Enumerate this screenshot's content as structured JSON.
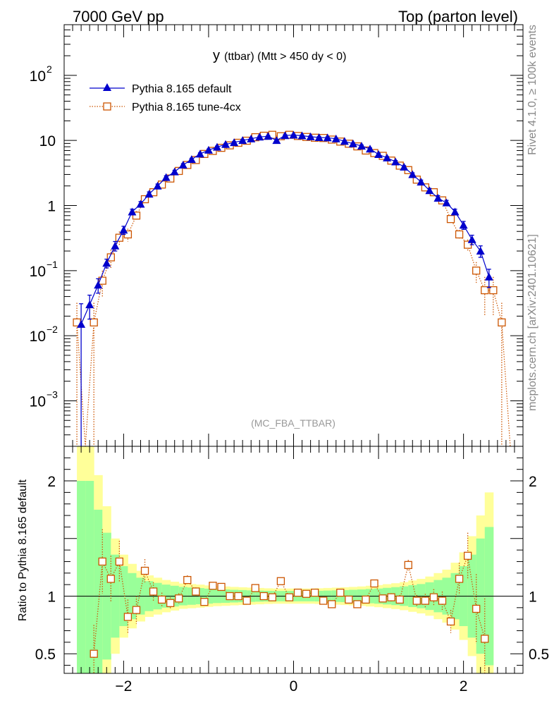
{
  "header": {
    "left": "7000 GeV pp",
    "right": "Top (parton level)"
  },
  "side_labels": {
    "rivet": "Rivet 4.1.0, ≥ 100k events",
    "mcplots": "mcplots.cern.ch [arXiv:2401.10621]"
  },
  "chart_data": [
    {
      "type": "scatter",
      "role": "main",
      "title_main": "y",
      "title_rest": "(ttbar) (Mtt > 450 dy < 0)",
      "watermark": "(MC_FBA_TTBAR)",
      "yscale": "log",
      "ylim": [
        0.0002,
        600
      ],
      "xlim": [
        -2.7,
        2.7
      ],
      "xlabel": "",
      "ylabel": "",
      "y_ticks": [
        {
          "value": 0.001,
          "base": "10",
          "exp": "−3"
        },
        {
          "value": 0.01,
          "base": "10",
          "exp": "−2"
        },
        {
          "value": 0.1,
          "base": "10",
          "exp": "−1"
        },
        {
          "value": 1,
          "base": "1",
          "exp": ""
        },
        {
          "value": 10,
          "base": "10",
          "exp": ""
        },
        {
          "value": 100,
          "base": "10",
          "exp": "2"
        }
      ],
      "legend": [
        "Pythia 8.165 default",
        "Pythia 8.165 tune-4cx"
      ],
      "legend_position": "top-left",
      "series": [
        {
          "name": "Pythia 8.165 default",
          "color": "#0000cc",
          "marker": "triangle",
          "x": [
            -2.5,
            -2.4,
            -2.3,
            -2.2,
            -2.1,
            -2.0,
            -1.9,
            -1.8,
            -1.7,
            -1.6,
            -1.5,
            -1.4,
            -1.3,
            -1.2,
            -1.1,
            -1.0,
            -0.9,
            -0.8,
            -0.7,
            -0.6,
            -0.5,
            -0.4,
            -0.3,
            -0.2,
            -0.1,
            0.0,
            0.1,
            0.2,
            0.3,
            0.4,
            0.5,
            0.6,
            0.7,
            0.8,
            0.9,
            1.0,
            1.1,
            1.2,
            1.3,
            1.4,
            1.5,
            1.6,
            1.7,
            1.8,
            1.9,
            2.0,
            2.1,
            2.2,
            2.3
          ],
          "y": [
            0.015,
            0.03,
            0.06,
            0.13,
            0.24,
            0.42,
            0.8,
            1.05,
            1.5,
            2.0,
            2.7,
            3.3,
            4.2,
            5.1,
            6.2,
            7.1,
            7.9,
            8.7,
            9.3,
            10.0,
            10.6,
            11.3,
            11.6,
            10.0,
            11.9,
            12.1,
            11.8,
            11.4,
            11.1,
            11.0,
            10.6,
            9.7,
            8.9,
            8.2,
            7.4,
            6.1,
            5.4,
            4.7,
            3.9,
            3.0,
            2.3,
            1.7,
            1.3,
            1.1,
            0.8,
            0.5,
            0.3,
            0.2,
            0.08
          ],
          "yerr": [
            0.016,
            0.012,
            0.015,
            0.02,
            0.04,
            0.06,
            0.08,
            0.1,
            0.12,
            0.14,
            0.16,
            0.18,
            0.2,
            0.22,
            0.24,
            0.26,
            0.28,
            0.3,
            0.3,
            0.32,
            0.32,
            0.34,
            0.34,
            0.32,
            0.35,
            0.35,
            0.35,
            0.34,
            0.34,
            0.33,
            0.33,
            0.32,
            0.3,
            0.3,
            0.28,
            0.26,
            0.24,
            0.22,
            0.2,
            0.18,
            0.16,
            0.13,
            0.12,
            0.1,
            0.08,
            0.07,
            0.05,
            0.04,
            0.025
          ]
        },
        {
          "name": "Pythia 8.165 tune-4cx",
          "color": "#cc5500",
          "marker": "open-square",
          "x": [
            -2.55,
            -2.45,
            -2.35,
            -2.25,
            -2.15,
            -2.05,
            -1.95,
            -1.85,
            -1.75,
            -1.65,
            -1.55,
            -1.45,
            -1.35,
            -1.25,
            -1.15,
            -1.05,
            -0.95,
            -0.85,
            -0.75,
            -0.65,
            -0.55,
            -0.45,
            -0.35,
            -0.25,
            -0.15,
            -0.05,
            0.05,
            0.15,
            0.25,
            0.35,
            0.45,
            0.55,
            0.65,
            0.75,
            0.85,
            0.95,
            1.05,
            1.15,
            1.25,
            1.35,
            1.45,
            1.55,
            1.65,
            1.75,
            1.85,
            1.95,
            2.05,
            2.15,
            2.25,
            2.35,
            2.45,
            2.55
          ],
          "y": [
            0.016,
            0,
            0.016,
            0.07,
            0.16,
            0.32,
            0.36,
            0.7,
            1.25,
            1.6,
            2.1,
            2.6,
            3.4,
            4.2,
            5.0,
            6.2,
            6.9,
            7.7,
            8.4,
            9.2,
            9.9,
            11.2,
            11.8,
            12.2,
            11.6,
            12.2,
            11.7,
            11.3,
            11.0,
            10.9,
            10.3,
            9.6,
            8.9,
            8.1,
            7.0,
            6.4,
            5.8,
            4.9,
            4.1,
            3.5,
            2.5,
            1.9,
            1.6,
            1.2,
            0.62,
            0.36,
            0.25,
            0.1,
            0.05,
            0.05,
            0.016,
            0
          ],
          "yerr": [
            0.016,
            0,
            0.016,
            0.03,
            0.05,
            0.08,
            0.08,
            0.12,
            0.14,
            0.16,
            0.18,
            0.2,
            0.22,
            0.24,
            0.26,
            0.28,
            0.3,
            0.3,
            0.32,
            0.33,
            0.34,
            0.35,
            0.36,
            0.36,
            0.36,
            0.36,
            0.36,
            0.35,
            0.35,
            0.35,
            0.34,
            0.33,
            0.32,
            0.3,
            0.28,
            0.27,
            0.25,
            0.24,
            0.22,
            0.2,
            0.17,
            0.15,
            0.13,
            0.11,
            0.08,
            0.06,
            0.05,
            0.035,
            0.03,
            0.03,
            0.016,
            0
          ]
        }
      ]
    },
    {
      "type": "scatter",
      "role": "ratio",
      "ylabel": "Ratio to Pythia 8.165 default",
      "xlabel": "",
      "yscale": "linear",
      "ylim": [
        0.33,
        2.3
      ],
      "xlim": [
        -2.7,
        2.7
      ],
      "x_ticks": [
        {
          "value": -2,
          "label": "−2"
        },
        {
          "value": 0,
          "label": "0"
        },
        {
          "value": 2,
          "label": "2"
        }
      ],
      "y_ticks": [
        {
          "value": 0.5,
          "label": "0.5"
        },
        {
          "value": 1,
          "label": "1"
        },
        {
          "value": 2,
          "label": "2"
        }
      ],
      "reference_line": 1,
      "band_edges": [
        -2.55,
        -2.45,
        -2.35,
        -2.25,
        -2.15,
        -2.05,
        -1.95,
        -1.85,
        -1.75,
        -1.65,
        -1.55,
        -1.45,
        -1.35,
        -1.25,
        -1.15,
        -1.05,
        -0.95,
        -0.85,
        -0.75,
        -0.65,
        -0.55,
        -0.45,
        -0.35,
        -0.25,
        -0.15,
        -0.05,
        0.05,
        0.15,
        0.25,
        0.35,
        0.45,
        0.55,
        0.65,
        0.75,
        0.85,
        0.95,
        1.05,
        1.15,
        1.25,
        1.35,
        1.45,
        1.55,
        1.65,
        1.75,
        1.85,
        1.95,
        2.05,
        2.15,
        2.25,
        2.35
      ],
      "band_inner": [
        1.0,
        1.0,
        0.75,
        0.55,
        0.36,
        0.26,
        0.2,
        0.16,
        0.13,
        0.115,
        0.1,
        0.09,
        0.08,
        0.075,
        0.07,
        0.065,
        0.06,
        0.058,
        0.055,
        0.053,
        0.05,
        0.048,
        0.046,
        0.045,
        0.045,
        0.045,
        0.045,
        0.045,
        0.046,
        0.048,
        0.05,
        0.052,
        0.055,
        0.058,
        0.062,
        0.066,
        0.072,
        0.078,
        0.085,
        0.095,
        0.105,
        0.12,
        0.14,
        0.16,
        0.2,
        0.26,
        0.36,
        0.5,
        0.6
      ],
      "band_outer": [
        1.4,
        1.4,
        1.05,
        0.78,
        0.5,
        0.36,
        0.28,
        0.22,
        0.18,
        0.16,
        0.14,
        0.125,
        0.11,
        0.105,
        0.1,
        0.093,
        0.087,
        0.084,
        0.08,
        0.077,
        0.074,
        0.071,
        0.068,
        0.066,
        0.066,
        0.066,
        0.066,
        0.066,
        0.068,
        0.071,
        0.074,
        0.077,
        0.08,
        0.084,
        0.09,
        0.096,
        0.104,
        0.112,
        0.122,
        0.136,
        0.15,
        0.17,
        0.2,
        0.23,
        0.29,
        0.38,
        0.52,
        0.7,
        0.9
      ],
      "series": [
        {
          "name": "Pythia 8.165 tune-4cx",
          "color": "#cc5500",
          "marker": "open-square",
          "x": [
            -2.35,
            -2.25,
            -2.15,
            -2.05,
            -1.95,
            -1.85,
            -1.75,
            -1.65,
            -1.55,
            -1.45,
            -1.35,
            -1.25,
            -1.15,
            -1.05,
            -0.95,
            -0.85,
            -0.75,
            -0.65,
            -0.55,
            -0.45,
            -0.35,
            -0.25,
            -0.15,
            -0.05,
            0.05,
            0.15,
            0.25,
            0.35,
            0.45,
            0.55,
            0.65,
            0.75,
            0.85,
            0.95,
            1.05,
            1.15,
            1.25,
            1.35,
            1.45,
            1.55,
            1.65,
            1.75,
            1.85,
            1.95,
            2.05,
            2.15,
            2.25
          ],
          "y": [
            0.5,
            1.3,
            1.15,
            1.3,
            0.82,
            0.88,
            1.22,
            1.04,
            0.97,
            0.94,
            0.98,
            1.14,
            1.04,
            0.95,
            1.09,
            1.08,
            1.0,
            1.0,
            0.96,
            1.07,
            1.0,
            0.99,
            1.13,
            0.99,
            1.03,
            1.02,
            1.03,
            0.96,
            0.93,
            1.03,
            0.97,
            0.93,
            0.97,
            1.11,
            0.98,
            0.99,
            0.97,
            1.27,
            0.96,
            0.96,
            0.99,
            0.96,
            0.78,
            1.15,
            1.35,
            0.89,
            0.63
          ],
          "yerr": [
            0.25,
            0.28,
            0.2,
            0.18,
            0.15,
            0.12,
            0.1,
            0.08,
            0.06,
            0.05,
            0.045,
            0.04,
            0.035,
            0.03,
            0.03,
            0.028,
            0.026,
            0.025,
            0.024,
            0.024,
            0.023,
            0.023,
            0.023,
            0.023,
            0.023,
            0.023,
            0.023,
            0.023,
            0.024,
            0.024,
            0.025,
            0.026,
            0.028,
            0.03,
            0.032,
            0.035,
            0.04,
            0.045,
            0.05,
            0.06,
            0.07,
            0.08,
            0.1,
            0.14,
            0.2,
            0.3,
            0.35
          ]
        }
      ]
    }
  ]
}
